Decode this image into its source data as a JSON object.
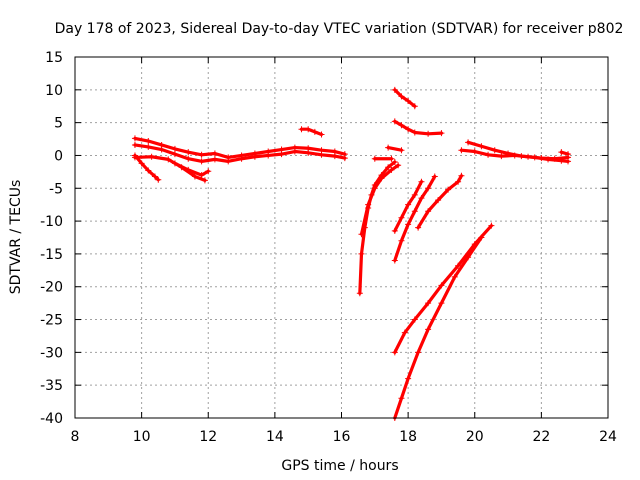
{
  "chart_data": {
    "type": "scatter",
    "title": "Day 178 of 2023, Sidereal Day-to-day VTEC variation (SDTVAR) for receiver p802",
    "xlabel": "GPS time / hours",
    "ylabel": "SDTVAR / TECUs",
    "xlim": [
      8,
      24
    ],
    "ylim": [
      -40,
      15
    ],
    "xticks": [
      8,
      10,
      12,
      14,
      16,
      18,
      20,
      22,
      24
    ],
    "yticks": [
      15,
      10,
      5,
      0,
      -5,
      -10,
      -15,
      -20,
      -25,
      -30,
      -35,
      -40
    ],
    "grid": true,
    "legend": "none",
    "marker": "plus",
    "color": "#ff0000",
    "series": [
      {
        "x": [
          9.8,
          10.2,
          10.6,
          11.0,
          11.4,
          11.8,
          12.2,
          12.6,
          13.0,
          13.4,
          13.8,
          14.2,
          14.6,
          15.0,
          15.4,
          15.8,
          16.1
        ],
        "y": [
          2.6,
          2.2,
          1.6,
          1.0,
          0.5,
          0.1,
          0.3,
          -0.3,
          0.0,
          0.3,
          0.6,
          0.9,
          1.2,
          1.1,
          0.8,
          0.6,
          0.2
        ]
      },
      {
        "x": [
          9.8,
          10.2,
          10.6,
          11.0,
          11.4,
          11.8,
          12.2,
          12.6,
          13.0,
          13.4,
          13.8,
          14.2,
          14.6,
          15.0,
          15.4,
          15.8,
          16.1
        ],
        "y": [
          1.6,
          1.3,
          0.9,
          0.2,
          -0.5,
          -0.9,
          -0.6,
          -0.9,
          -0.5,
          -0.2,
          0.0,
          0.2,
          0.6,
          0.4,
          0.1,
          -0.1,
          -0.4
        ]
      },
      {
        "x": [
          9.8,
          10.0,
          10.2,
          10.4,
          10.5
        ],
        "y": [
          0.0,
          -1.2,
          -2.3,
          -3.2,
          -3.7
        ]
      },
      {
        "x": [
          9.8,
          10.3,
          10.8,
          11.2,
          11.6,
          11.9
        ],
        "y": [
          -0.3,
          -0.2,
          -0.6,
          -1.8,
          -3.2,
          -3.8
        ]
      },
      {
        "x": [
          11.0,
          11.4,
          11.8,
          12.0
        ],
        "y": [
          -1.2,
          -2.2,
          -3.0,
          -2.4
        ]
      },
      {
        "x": [
          14.8,
          15.0,
          15.2,
          15.4
        ],
        "y": [
          4.0,
          4.0,
          3.6,
          3.2
        ]
      },
      {
        "x": [
          16.55,
          16.6,
          16.7,
          16.8,
          16.9,
          17.0,
          17.2,
          17.4,
          17.6
        ],
        "y": [
          -21.0,
          -15.0,
          -11.0,
          -8.0,
          -6.0,
          -4.5,
          -3.0,
          -1.8,
          -1.0
        ]
      },
      {
        "x": [
          16.6,
          16.8,
          17.0,
          17.2,
          17.5,
          17.7
        ],
        "y": [
          -12.0,
          -7.5,
          -5.0,
          -3.5,
          -2.2,
          -1.5
        ]
      },
      {
        "x": [
          17.0,
          17.5
        ],
        "y": [
          -0.5,
          -0.5
        ]
      },
      {
        "x": [
          17.6,
          17.8,
          18.0,
          18.2,
          18.4,
          18.6,
          18.8
        ],
        "y": [
          -16.0,
          -13.0,
          -10.5,
          -8.5,
          -6.5,
          -5.0,
          -3.2
        ]
      },
      {
        "x": [
          17.6,
          17.8,
          18.0,
          18.2,
          18.4
        ],
        "y": [
          -11.5,
          -9.5,
          -7.5,
          -6.0,
          -4.0
        ]
      },
      {
        "x": [
          17.4,
          17.8
        ],
        "y": [
          1.2,
          0.8
        ]
      },
      {
        "x": [
          17.6,
          17.8,
          18.0,
          18.2
        ],
        "y": [
          10.0,
          9.0,
          8.3,
          7.5
        ]
      },
      {
        "x": [
          17.6,
          17.8,
          18.0,
          18.2,
          18.6,
          19.0
        ],
        "y": [
          5.2,
          4.6,
          4.0,
          3.5,
          3.3,
          3.4
        ]
      },
      {
        "x": [
          18.3,
          18.6,
          18.9,
          19.2,
          19.5,
          19.6
        ],
        "y": [
          -11.0,
          -8.5,
          -6.8,
          -5.2,
          -4.0,
          -3.1
        ]
      },
      {
        "x": [
          17.6,
          17.9,
          18.2,
          18.6,
          19.0,
          19.5,
          20.0,
          20.5
        ],
        "y": [
          -30.0,
          -27.0,
          -25.0,
          -22.5,
          -19.8,
          -16.8,
          -13.5,
          -10.7
        ]
      },
      {
        "x": [
          17.6,
          17.8,
          18.0,
          18.3,
          18.6,
          19.0,
          19.4,
          19.8,
          20.2
        ],
        "y": [
          -40.0,
          -37.0,
          -34.0,
          -30.0,
          -26.5,
          -22.5,
          -18.5,
          -15.5,
          -12.5
        ]
      },
      {
        "x": [
          19.6,
          20.0,
          20.4,
          20.8,
          21.2,
          21.6,
          22.0,
          22.4,
          22.8
        ],
        "y": [
          0.8,
          0.6,
          0.1,
          -0.1,
          0.0,
          -0.2,
          -0.4,
          -0.5,
          -0.3
        ]
      },
      {
        "x": [
          19.8,
          20.2,
          20.6,
          21.0,
          21.4,
          21.8,
          22.2,
          22.6,
          22.8
        ],
        "y": [
          2.0,
          1.4,
          0.8,
          0.3,
          -0.1,
          -0.3,
          -0.6,
          -0.8,
          -0.9
        ]
      },
      {
        "x": [
          22.6,
          22.8
        ],
        "y": [
          0.5,
          0.2
        ]
      }
    ]
  }
}
